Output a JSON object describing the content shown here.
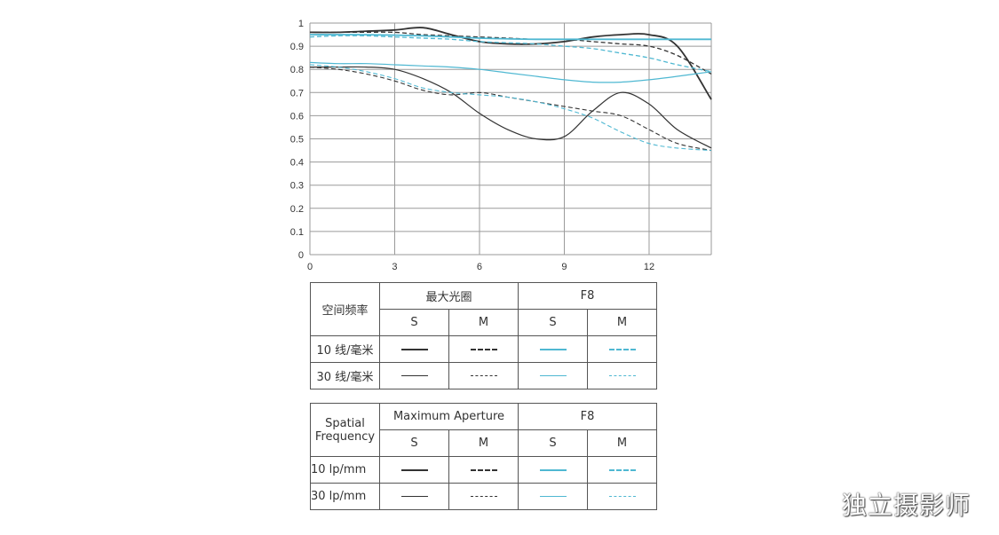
{
  "chart_data": {
    "type": "line",
    "title": "",
    "xlabel": "",
    "ylabel": "",
    "xlim": [
      0,
      14.2
    ],
    "ylim": [
      0,
      1
    ],
    "x_ticks": [
      "0",
      "3",
      "6",
      "9",
      "12"
    ],
    "y_ticks": [
      "0",
      "0.1",
      "0.2",
      "0.3",
      "0.4",
      "0.5",
      "0.6",
      "0.7",
      "0.8",
      "0.9",
      "1"
    ],
    "grid": true,
    "colors": {
      "max_aperture": "#333333",
      "f8": "#4fb8d2"
    },
    "series": [
      {
        "name": "10 lp/mm S (Maximum Aperture)",
        "color": "#333333",
        "style": "solid",
        "width": 1.8,
        "x": [
          0,
          1,
          2,
          3,
          4,
          5,
          6,
          7,
          8,
          9,
          10,
          11,
          12,
          13,
          14.2
        ],
        "y": [
          0.96,
          0.96,
          0.965,
          0.97,
          0.98,
          0.95,
          0.92,
          0.91,
          0.91,
          0.92,
          0.94,
          0.95,
          0.95,
          0.9,
          0.67
        ]
      },
      {
        "name": "10 lp/mm M (Maximum Aperture)",
        "color": "#333333",
        "style": "dashed",
        "width": 1.3,
        "x": [
          0,
          1,
          2,
          3,
          4,
          5,
          6,
          7,
          8,
          9,
          10,
          11,
          12,
          13,
          14.2
        ],
        "y": [
          0.96,
          0.96,
          0.96,
          0.96,
          0.95,
          0.945,
          0.94,
          0.935,
          0.93,
          0.93,
          0.92,
          0.91,
          0.9,
          0.86,
          0.78
        ]
      },
      {
        "name": "30 lp/mm S (Maximum Aperture)",
        "color": "#333333",
        "style": "solid",
        "width": 1.2,
        "x": [
          0,
          1,
          2,
          3,
          4,
          5,
          6,
          7,
          8,
          9,
          10,
          11,
          12,
          13,
          14.2
        ],
        "y": [
          0.81,
          0.81,
          0.81,
          0.8,
          0.76,
          0.7,
          0.61,
          0.54,
          0.5,
          0.51,
          0.62,
          0.7,
          0.65,
          0.54,
          0.46
        ]
      },
      {
        "name": "30 lp/mm M (Maximum Aperture)",
        "color": "#333333",
        "style": "dashed",
        "width": 1.1,
        "x": [
          0,
          1,
          2,
          3,
          4,
          5,
          6,
          7,
          8,
          9,
          10,
          11,
          12,
          13,
          14.2
        ],
        "y": [
          0.81,
          0.8,
          0.78,
          0.75,
          0.71,
          0.69,
          0.7,
          0.68,
          0.66,
          0.64,
          0.62,
          0.6,
          0.54,
          0.48,
          0.45
        ]
      },
      {
        "name": "10 lp/mm S (F8)",
        "color": "#4fb8d2",
        "style": "solid",
        "width": 1.8,
        "x": [
          0,
          2,
          4,
          6,
          8,
          10,
          12,
          14.2
        ],
        "y": [
          0.95,
          0.95,
          0.945,
          0.935,
          0.93,
          0.93,
          0.93,
          0.93
        ]
      },
      {
        "name": "10 lp/mm M (F8)",
        "color": "#4fb8d2",
        "style": "dashed",
        "width": 1.3,
        "x": [
          0,
          1,
          2,
          3,
          4,
          5,
          6,
          7,
          8,
          9,
          10,
          11,
          12,
          13,
          14.2
        ],
        "y": [
          0.94,
          0.945,
          0.945,
          0.94,
          0.935,
          0.93,
          0.92,
          0.915,
          0.91,
          0.9,
          0.89,
          0.87,
          0.85,
          0.82,
          0.79
        ]
      },
      {
        "name": "30 lp/mm S (F8)",
        "color": "#4fb8d2",
        "style": "solid",
        "width": 1.2,
        "x": [
          0,
          1,
          2,
          3,
          4,
          5,
          6,
          7,
          8,
          9,
          10,
          11,
          12,
          13,
          14.2
        ],
        "y": [
          0.83,
          0.825,
          0.825,
          0.82,
          0.815,
          0.81,
          0.8,
          0.785,
          0.77,
          0.755,
          0.745,
          0.745,
          0.755,
          0.77,
          0.79
        ]
      },
      {
        "name": "30 lp/mm M (F8)",
        "color": "#4fb8d2",
        "style": "dashed",
        "width": 1.1,
        "x": [
          0,
          1,
          2,
          3,
          4,
          5,
          6,
          7,
          8,
          9,
          10,
          11,
          12,
          13,
          14.2
        ],
        "y": [
          0.82,
          0.81,
          0.79,
          0.76,
          0.72,
          0.7,
          0.69,
          0.68,
          0.66,
          0.63,
          0.59,
          0.53,
          0.48,
          0.46,
          0.45
        ]
      }
    ]
  },
  "legend_cn": {
    "freq_header": "空间频率",
    "max_aperture": "最大光圈",
    "f8": "F8",
    "s": "S",
    "m": "M",
    "row1": "10 线/毫米",
    "row2": "30 线/毫米"
  },
  "legend_en": {
    "freq_header_1": "Spatial",
    "freq_header_2": "Frequency",
    "max_aperture": "Maximum Aperture",
    "f8": "F8",
    "s": "S",
    "m": "M",
    "row1": "10 lp/mm",
    "row2": "30 lp/mm"
  },
  "watermark": "独立摄影师"
}
